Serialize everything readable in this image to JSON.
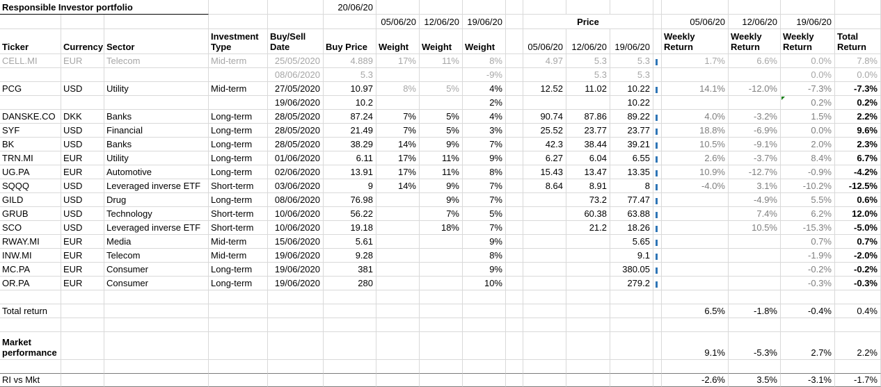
{
  "sheet": {
    "title": "Responsible Investor portfolio",
    "as_of_date": "20/06/20",
    "weight_dates": [
      "05/06/20",
      "12/06/20",
      "19/06/20"
    ],
    "price_label": "Price",
    "price_dates": [
      "05/06/20",
      "12/06/20",
      "19/06/20"
    ],
    "return_dates": [
      "05/06/20",
      "12/06/20",
      "19/06/20"
    ],
    "headers": {
      "ticker": "Ticker",
      "currency": "Currency",
      "sector": "Sector",
      "investment_type": "Investment Type",
      "buy_sell_date": "Buy/Sell Date",
      "buy_price": "Buy Price",
      "weight": "Weight",
      "weekly_return": "Weekly Return",
      "total_return": "Total Return"
    },
    "colors": {
      "muted_text": "#a6a6a6",
      "weekly_return_text": "#7f7f7f",
      "gridline": "#d9d9d9",
      "flag_green": "#107c10",
      "fragment_blue": "#2e75b6",
      "dark_border": "#7a7a7a"
    },
    "rows": [
      {
        "ticker": "CELL.MI",
        "currency": "EUR",
        "sector": "Telecom",
        "type": "Mid-term",
        "date": "25/05/2020",
        "buy": "4.889",
        "w1": "17%",
        "w2": "11%",
        "w3": "8%",
        "p1": "4.97",
        "p2": "5.3",
        "p3": "5.3",
        "r1": "1.7%",
        "r2": "6.6%",
        "r3": "0.0%",
        "total": "7.8%",
        "muted": true,
        "frag": true
      },
      {
        "ticker": "",
        "currency": "",
        "sector": "",
        "type": "",
        "date": "08/06/2020",
        "buy": "5.3",
        "w1": "",
        "w2": "",
        "w3": "-9%",
        "p1": "",
        "p2": "5.3",
        "p3": "5.3",
        "r1": "",
        "r2": "",
        "r3": "0.0%",
        "total": "0.0%",
        "muted": true
      },
      {
        "ticker": "PCG",
        "currency": "USD",
        "sector": "Utility",
        "type": "Mid-term",
        "date": "27/05/2020",
        "buy": "10.97",
        "w1": "8%",
        "w2": "5%",
        "w3": "4%",
        "p1": "12.52",
        "p2": "11.02",
        "p3": "10.22",
        "r1": "14.1%",
        "r2": "-12.0%",
        "r3": "-7.3%",
        "total": "-7.3%",
        "muted_weights": true,
        "frag": true
      },
      {
        "ticker": "",
        "currency": "",
        "sector": "",
        "type": "",
        "date": "19/06/2020",
        "buy": "10.2",
        "w1": "",
        "w2": "",
        "w3": "2%",
        "p1": "",
        "p2": "",
        "p3": "10.22",
        "r1": "",
        "r2": "",
        "r3": "0.2%",
        "total": "0.2%",
        "flag": true
      },
      {
        "ticker": "DANSKE.CO",
        "currency": "DKK",
        "sector": "Banks",
        "type": "Long-term",
        "date": "28/05/2020",
        "buy": "87.24",
        "w1": "7%",
        "w2": "5%",
        "w3": "4%",
        "p1": "90.74",
        "p2": "87.86",
        "p3": "89.22",
        "r1": "4.0%",
        "r2": "-3.2%",
        "r3": "1.5%",
        "total": "2.2%",
        "frag": true
      },
      {
        "ticker": "SYF",
        "currency": "USD",
        "sector": "Financial",
        "type": "Long-term",
        "date": "28/05/2020",
        "buy": "21.49",
        "w1": "7%",
        "w2": "5%",
        "w3": "3%",
        "p1": "25.52",
        "p2": "23.77",
        "p3": "23.77",
        "r1": "18.8%",
        "r2": "-6.9%",
        "r3": "0.0%",
        "total": "9.6%",
        "frag": true
      },
      {
        "ticker": "BK",
        "currency": "USD",
        "sector": "Banks",
        "type": "Long-term",
        "date": "28/05/2020",
        "buy": "38.29",
        "w1": "14%",
        "w2": "9%",
        "w3": "7%",
        "p1": "42.3",
        "p2": "38.44",
        "p3": "39.21",
        "r1": "10.5%",
        "r2": "-9.1%",
        "r3": "2.0%",
        "total": "2.3%",
        "frag": true
      },
      {
        "ticker": "TRN.MI",
        "currency": "EUR",
        "sector": "Utility",
        "type": "Long-term",
        "date": "01/06/2020",
        "buy": "6.11",
        "w1": "17%",
        "w2": "11%",
        "w3": "9%",
        "p1": "6.27",
        "p2": "6.04",
        "p3": "6.55",
        "r1": "2.6%",
        "r2": "-3.7%",
        "r3": "8.4%",
        "total": "6.7%",
        "frag": true
      },
      {
        "ticker": "UG.PA",
        "currency": "EUR",
        "sector": "Automotive",
        "type": "Long-term",
        "date": "02/06/2020",
        "buy": "13.91",
        "w1": "17%",
        "w2": "11%",
        "w3": "8%",
        "p1": "15.43",
        "p2": "13.47",
        "p3": "13.35",
        "r1": "10.9%",
        "r2": "-12.7%",
        "r3": "-0.9%",
        "total": "-4.2%",
        "frag": true
      },
      {
        "ticker": "SQQQ",
        "currency": "USD",
        "sector": "Leveraged inverse ETF",
        "type": "Short-term",
        "date": "03/06/2020",
        "buy": "9",
        "w1": "14%",
        "w2": "9%",
        "w3": "7%",
        "p1": "8.64",
        "p2": "8.91",
        "p3": "8",
        "r1": "-4.0%",
        "r2": "3.1%",
        "r3": "-10.2%",
        "total": "-12.5%",
        "frag": true
      },
      {
        "ticker": "GILD",
        "currency": "USD",
        "sector": "Drug",
        "type": "Long-term",
        "date": "08/06/2020",
        "buy": "76.98",
        "w1": "",
        "w2": "9%",
        "w3": "7%",
        "p1": "",
        "p2": "73.2",
        "p3": "77.47",
        "r1": "",
        "r2": "-4.9%",
        "r3": "5.5%",
        "total": "0.6%",
        "frag": true
      },
      {
        "ticker": "GRUB",
        "currency": "USD",
        "sector": "Technology",
        "type": "Short-term",
        "date": "10/06/2020",
        "buy": "56.22",
        "w1": "",
        "w2": "7%",
        "w3": "5%",
        "p1": "",
        "p2": "60.38",
        "p3": "63.88",
        "r1": "",
        "r2": "7.4%",
        "r3": "6.2%",
        "total": "12.0%",
        "frag": true
      },
      {
        "ticker": "SCO",
        "currency": "USD",
        "sector": "Leveraged inverse ETF",
        "type": "Short-term",
        "date": "10/06/2020",
        "buy": "19.18",
        "w1": "",
        "w2": "18%",
        "w3": "7%",
        "p1": "",
        "p2": "21.2",
        "p3": "18.26",
        "r1": "",
        "r2": "10.5%",
        "r3": "-15.3%",
        "total": "-5.0%",
        "frag": true
      },
      {
        "ticker": "RWAY.MI",
        "currency": "EUR",
        "sector": "Media",
        "type": "Mid-term",
        "date": "15/06/2020",
        "buy": "5.61",
        "w1": "",
        "w2": "",
        "w3": "9%",
        "p1": "",
        "p2": "",
        "p3": "5.65",
        "r1": "",
        "r2": "",
        "r3": "0.7%",
        "total": "0.7%",
        "frag": true
      },
      {
        "ticker": "INW.MI",
        "currency": "EUR",
        "sector": "Telecom",
        "type": "Mid-term",
        "date": "19/06/2020",
        "buy": "9.28",
        "w1": "",
        "w2": "",
        "w3": "8%",
        "p1": "",
        "p2": "",
        "p3": "9.1",
        "r1": "",
        "r2": "",
        "r3": "-1.9%",
        "total": "-2.0%",
        "frag": true
      },
      {
        "ticker": "MC.PA",
        "currency": "EUR",
        "sector": "Consumer",
        "type": "Long-term",
        "date": "19/06/2020",
        "buy": "381",
        "w1": "",
        "w2": "",
        "w3": "9%",
        "p1": "",
        "p2": "",
        "p3": "380.05",
        "r1": "",
        "r2": "",
        "r3": "-0.2%",
        "total": "-0.2%",
        "frag": true
      },
      {
        "ticker": "OR.PA",
        "currency": "EUR",
        "sector": "Consumer",
        "type": "Long-term",
        "date": "19/06/2020",
        "buy": "280",
        "w1": "",
        "w2": "",
        "w3": "10%",
        "p1": "",
        "p2": "",
        "p3": "279.2",
        "r1": "",
        "r2": "",
        "r3": "-0.3%",
        "total": "-0.3%",
        "frag": true
      }
    ],
    "summary": [
      {
        "label": "Total return",
        "values": [
          "6.5%",
          "-1.8%",
          "-0.4%",
          "0.4%"
        ],
        "bold": false,
        "dark": false
      },
      {
        "label": "Market performance",
        "values": [
          "9.1%",
          "-5.3%",
          "2.7%",
          "2.2%"
        ],
        "bold": true,
        "dark": false
      },
      {
        "label": "RI vs Mkt",
        "values": [
          "-2.6%",
          "3.5%",
          "-3.1%",
          "-1.7%"
        ],
        "bold": false,
        "dark": true
      }
    ]
  }
}
